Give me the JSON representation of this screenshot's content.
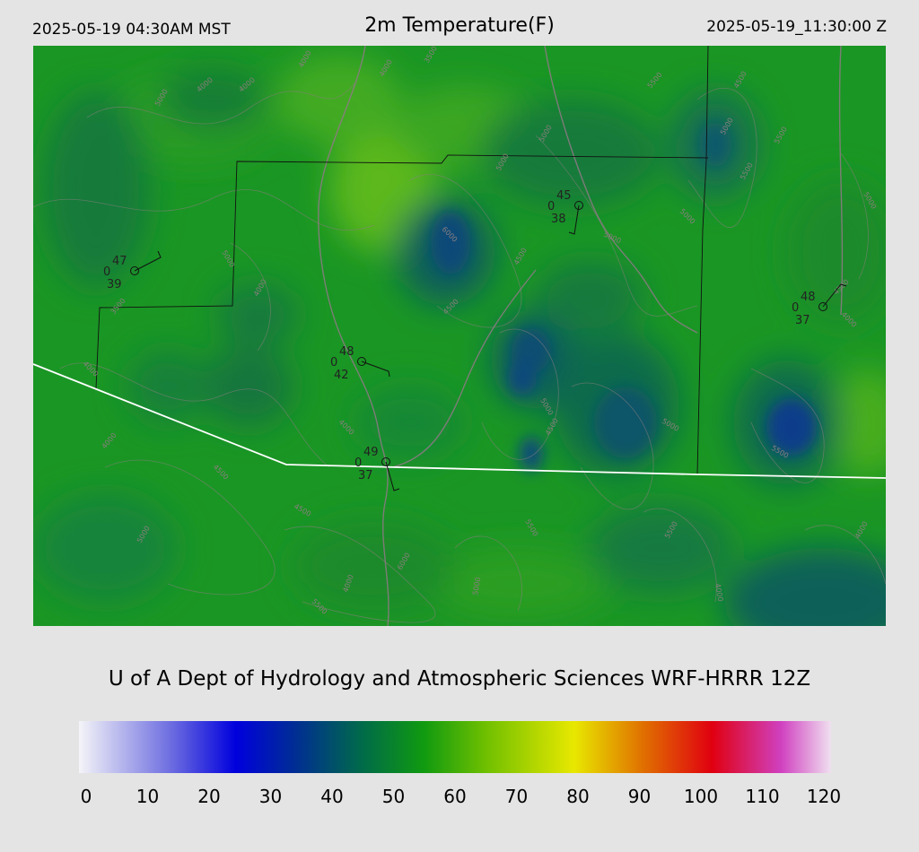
{
  "header": {
    "local_time": "2025-05-19 04:30AM MST",
    "title": "2m Temperature(F)",
    "utc_time": "2025-05-19_11:30:00 Z"
  },
  "credit": "U of A Dept of Hydrology and Atmospheric Sciences WRF-HRRR 12Z",
  "colorbar": {
    "ticks": [
      "0",
      "10",
      "20",
      "30",
      "40",
      "50",
      "60",
      "70",
      "80",
      "90",
      "100",
      "110",
      "120"
    ],
    "min": 0,
    "max": 120,
    "stops": [
      {
        "value": 0,
        "color": "#f4f4f8"
      },
      {
        "value": 15,
        "color": "#6a6ae0"
      },
      {
        "value": 25,
        "color": "#0000dd"
      },
      {
        "value": 35,
        "color": "#003090"
      },
      {
        "value": 45,
        "color": "#006a4a"
      },
      {
        "value": 55,
        "color": "#109a10"
      },
      {
        "value": 65,
        "color": "#70c000"
      },
      {
        "value": 79,
        "color": "#e8e800"
      },
      {
        "value": 90,
        "color": "#e07000"
      },
      {
        "value": 101,
        "color": "#e00010"
      },
      {
        "value": 112,
        "color": "#d040c0"
      },
      {
        "value": 120,
        "color": "#f0e0f0"
      }
    ]
  },
  "map": {
    "contour_labels": [
      "4000",
      "4000",
      "5000",
      "4000",
      "4000",
      "3500",
      "5000",
      "6000",
      "5500",
      "4500",
      "5000",
      "5000",
      "5000",
      "5000",
      "4500",
      "4000",
      "4000",
      "5000",
      "5500",
      "4500",
      "4000",
      "4500",
      "5500",
      "5000",
      "4000",
      "4500",
      "5000",
      "6000",
      "5500",
      "5500",
      "5500",
      "5000",
      "4000",
      "3500",
      "4000",
      "4500",
      "4000",
      "4500",
      "5000",
      "5500",
      "5000",
      "4000"
    ],
    "stations": [
      {
        "name": "station-1",
        "temp": "47",
        "cloud": "0",
        "dewpoint": "39"
      },
      {
        "name": "station-2",
        "temp": "45",
        "cloud": "0",
        "dewpoint": "38"
      },
      {
        "name": "station-3",
        "temp": "48",
        "cloud": "0",
        "dewpoint": "37"
      },
      {
        "name": "station-4",
        "temp": "48",
        "cloud": "0",
        "dewpoint": "42"
      },
      {
        "name": "station-5",
        "temp": "49",
        "cloud": "0",
        "dewpoint": "37"
      }
    ]
  }
}
